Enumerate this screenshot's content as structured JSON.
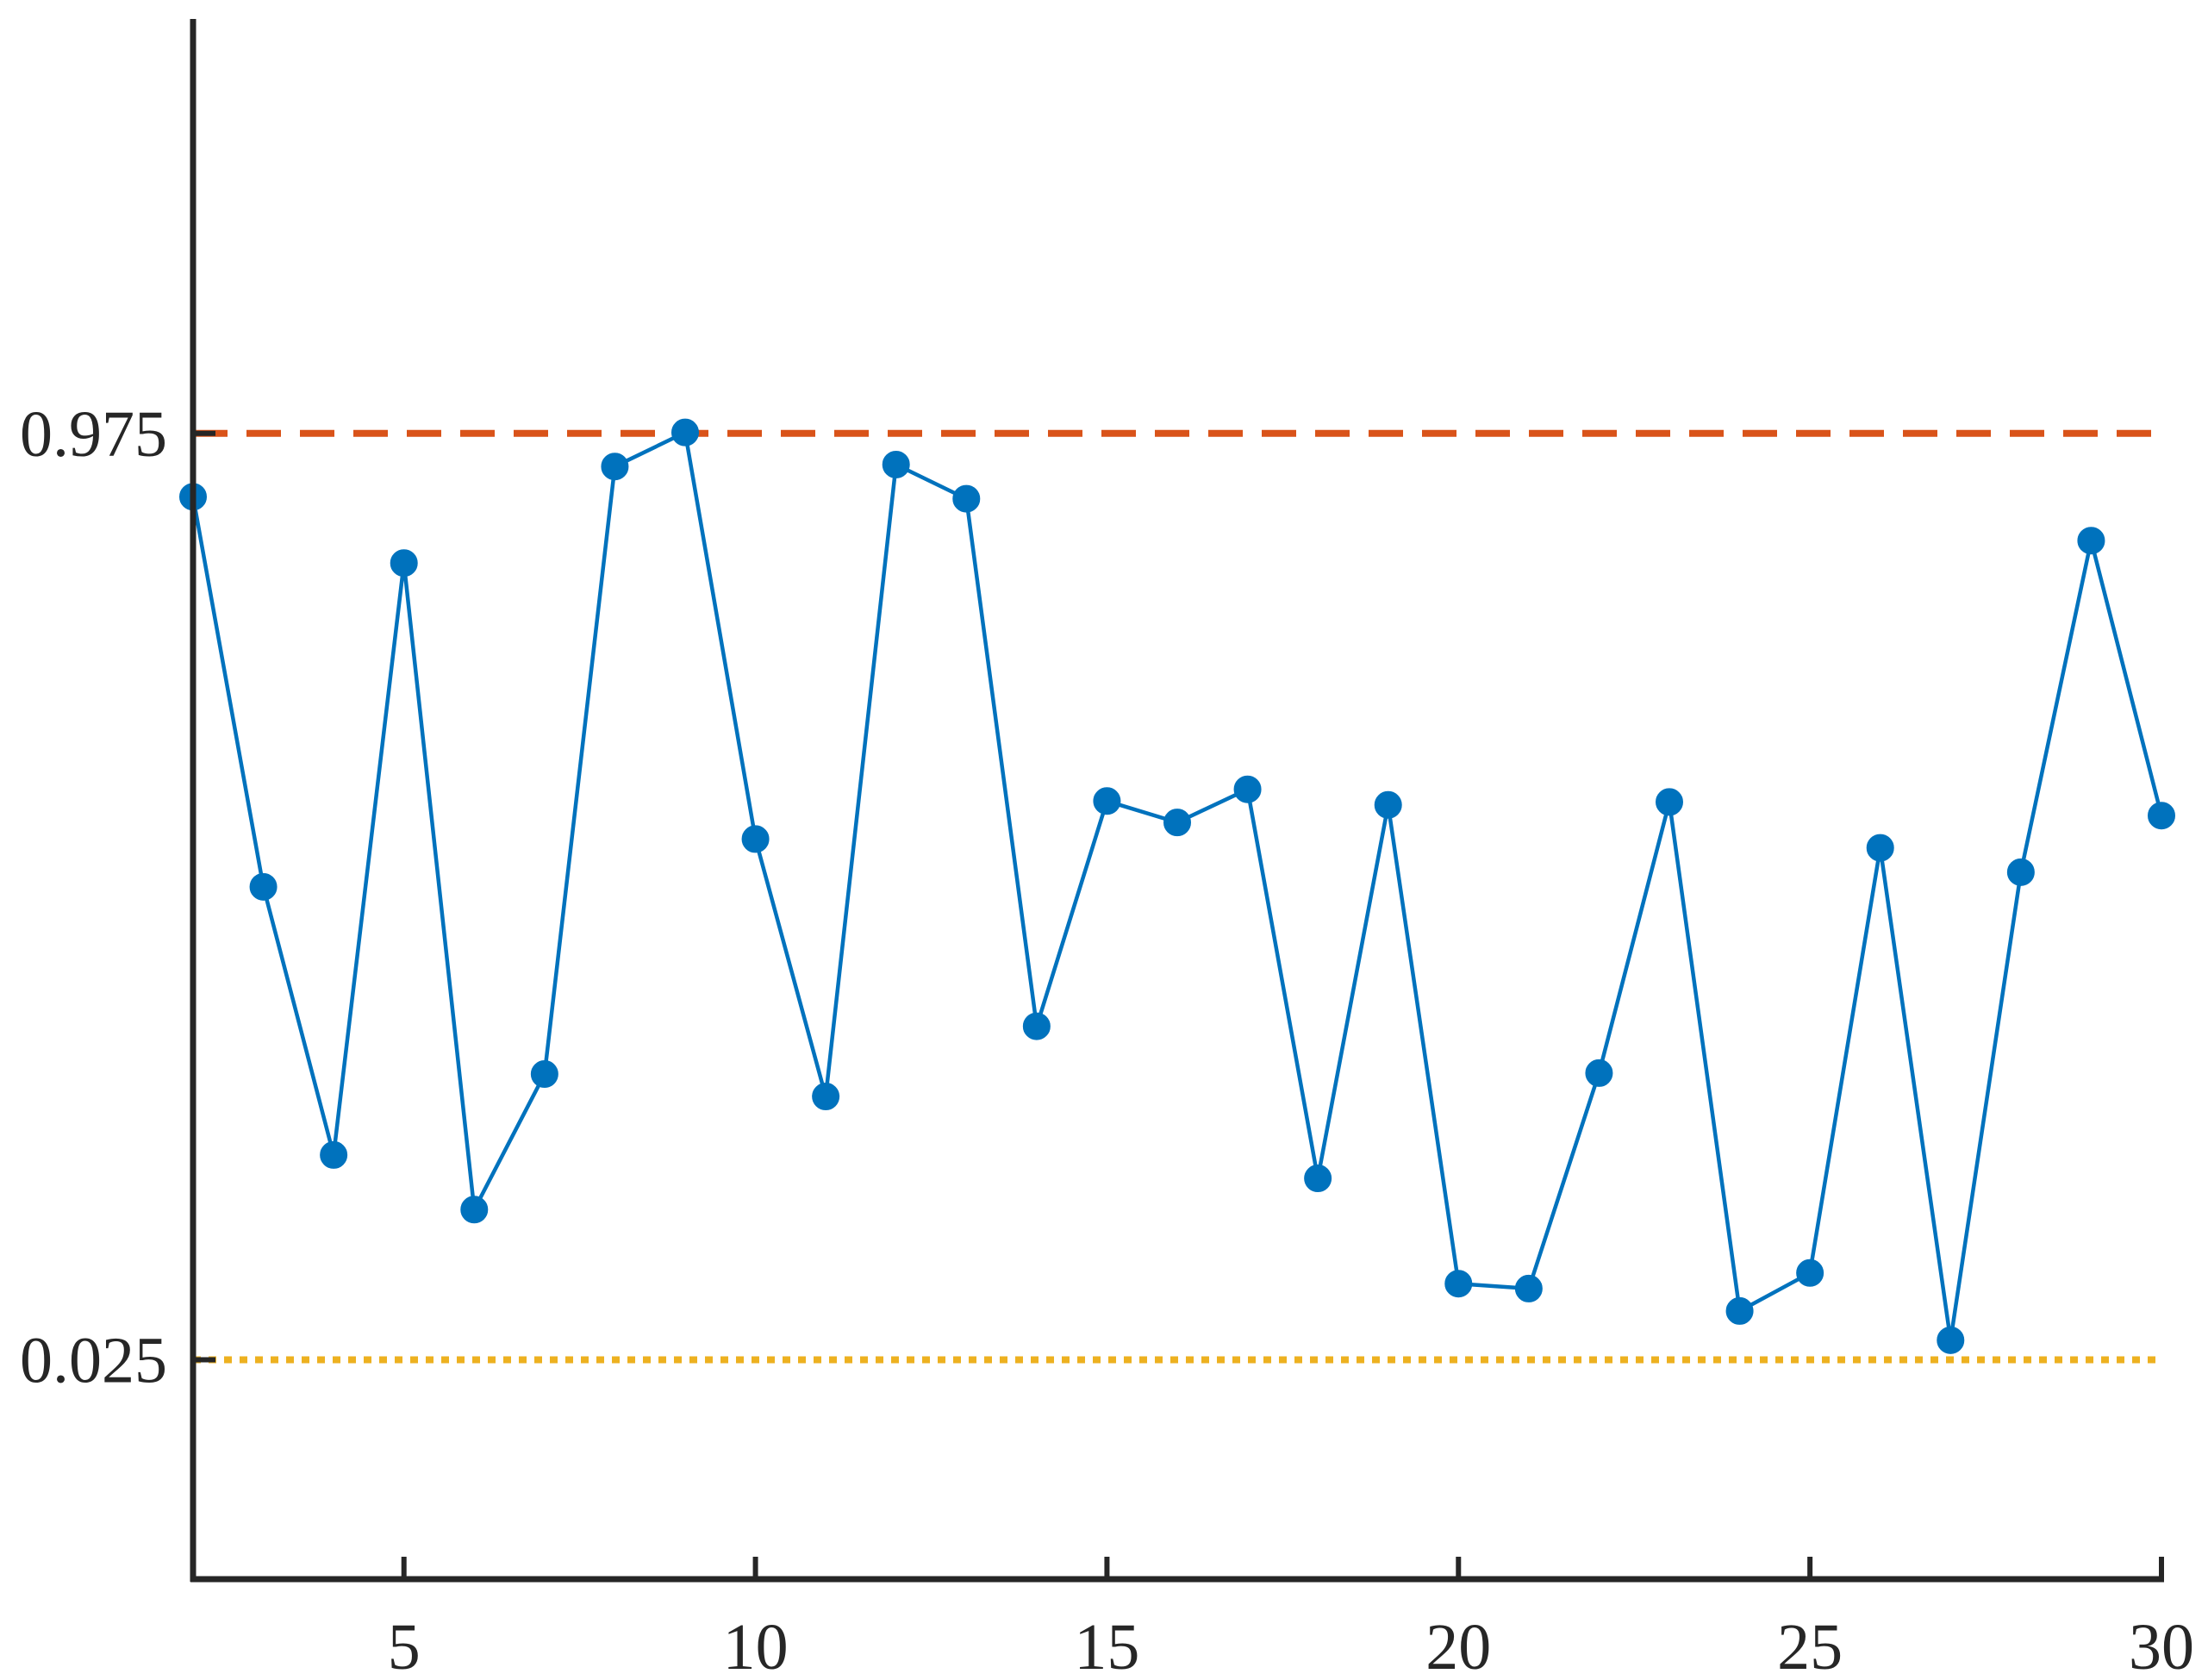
{
  "chart_data": {
    "type": "line",
    "title": "",
    "xlabel": "",
    "ylabel": "",
    "xlim": [
      2,
      30
    ],
    "ylim": [
      -0.2,
      1.4
    ],
    "x_ticks": [
      5,
      10,
      15,
      20,
      25,
      30
    ],
    "x_tick_labels": [
      "5",
      "10",
      "15",
      "20",
      "25",
      "30"
    ],
    "y_ticks": [
      0.025,
      0.975
    ],
    "y_tick_labels": [
      "0.025",
      "0.975"
    ],
    "grid": false,
    "legend": "none",
    "series": [
      {
        "color": "#0072BD",
        "marker": "circle",
        "x": [
          2,
          3,
          4,
          5,
          6,
          7,
          8,
          9,
          10,
          11,
          12,
          13,
          14,
          15,
          16,
          17,
          18,
          19,
          20,
          21,
          22,
          23,
          24,
          25,
          26,
          27,
          28,
          29,
          30
        ],
        "values": [
          0.91,
          0.51,
          0.235,
          0.842,
          0.179,
          0.318,
          0.941,
          0.976,
          0.559,
          0.295,
          0.943,
          0.908,
          0.367,
          0.598,
          0.576,
          0.61,
          0.211,
          0.594,
          0.103,
          0.098,
          0.319,
          0.597,
          0.075,
          0.114,
          0.55,
          0.045,
          0.525,
          0.865,
          0.583
        ]
      }
    ],
    "reference_lines": [
      {
        "y": 0.975,
        "color": "#D95319",
        "style": "dashed"
      },
      {
        "y": 0.025,
        "color": "#EDB120",
        "style": "dotted"
      }
    ]
  }
}
